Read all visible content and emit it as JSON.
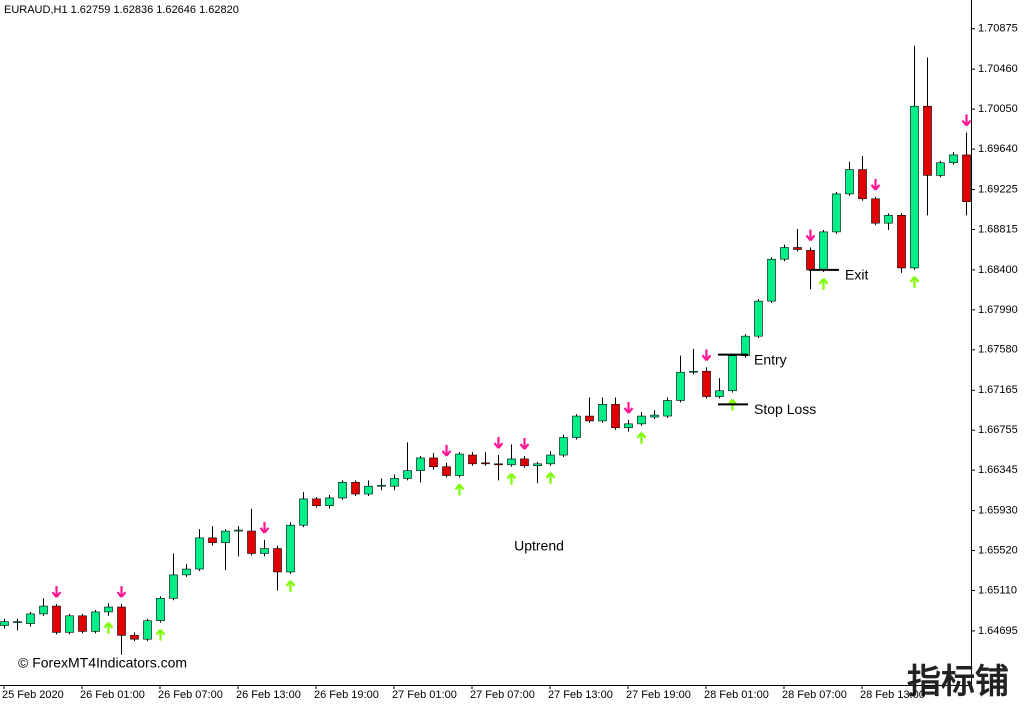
{
  "chart_data": {
    "type": "candlestick",
    "title": "EURAUD,H1  1.62759 1.62836 1.62646 1.62820",
    "categories": [
      "25 Feb 2020",
      null,
      null,
      null,
      null,
      null,
      "26 Feb 01:00",
      null,
      null,
      null,
      null,
      null,
      "26 Feb 07:00",
      null,
      null,
      null,
      null,
      null,
      "26 Feb 13:00",
      null,
      null,
      null,
      null,
      null,
      "26 Feb 19:00",
      null,
      null,
      null,
      null,
      null,
      "27 Feb 01:00",
      null,
      null,
      null,
      null,
      null,
      "27 Feb 07:00",
      null,
      null,
      null,
      null,
      null,
      "27 Feb 13:00",
      null,
      null,
      null,
      null,
      null,
      "27 Feb 19:00",
      null,
      null,
      null,
      null,
      null,
      "28 Feb 01:00",
      null,
      null,
      null,
      null,
      null,
      "28 Feb 07:00",
      null,
      null,
      null,
      null,
      null,
      "28 Feb 13:00",
      null,
      null,
      null,
      null,
      null,
      null,
      null,
      null
    ],
    "open": [
      1.6475,
      1.6478,
      1.6477,
      1.6487,
      1.6495,
      1.6468,
      1.6485,
      1.6469,
      1.6489,
      1.6494,
      1.6465,
      1.6461,
      1.648,
      1.6503,
      1.6527,
      1.6533,
      1.6565,
      1.656,
      1.6572,
      1.6572,
      1.6549,
      1.6554,
      1.653,
      1.6578,
      1.6605,
      1.6598,
      1.6606,
      1.6622,
      1.661,
      1.6618,
      1.6618,
      1.6626,
      1.6634,
      1.6647,
      1.6638,
      1.6629,
      1.665,
      1.6642,
      1.6641,
      1.664,
      1.6646,
      1.6639,
      1.6641,
      1.665,
      1.6668,
      1.669,
      1.6685,
      1.6702,
      1.6678,
      1.6682,
      1.6689,
      1.669,
      1.6706,
      1.6735,
      1.6736,
      1.671,
      1.6716,
      1.6752,
      1.6772,
      1.6808,
      1.6851,
      1.6863,
      1.686,
      1.684,
      1.6879,
      1.6918,
      1.6943,
      1.6913,
      1.6888,
      1.6896,
      1.6842,
      1.7008,
      1.6937,
      1.695,
      1.6958
    ],
    "high": [
      1.6482,
      1.6482,
      1.6489,
      1.6503,
      1.6497,
      1.6487,
      1.6487,
      1.6491,
      1.6498,
      1.6497,
      1.6468,
      1.6482,
      1.6505,
      1.6549,
      1.6538,
      1.6574,
      1.6577,
      1.6574,
      1.6577,
      1.6595,
      1.6563,
      1.6557,
      1.6581,
      1.6612,
      1.6607,
      1.6609,
      1.6624,
      1.6624,
      1.6624,
      1.6626,
      1.663,
      1.6663,
      1.6649,
      1.6652,
      1.6642,
      1.6653,
      1.6653,
      1.6653,
      1.665,
      1.6661,
      1.6649,
      1.6643,
      1.6654,
      1.6671,
      1.6692,
      1.6709,
      1.6709,
      1.6709,
      1.6686,
      1.6694,
      1.6696,
      1.6709,
      1.6752,
      1.6759,
      1.674,
      1.6729,
      1.6754,
      1.6774,
      1.681,
      1.6853,
      1.6866,
      1.6882,
      1.6863,
      1.6881,
      1.692,
      1.6951,
      1.6957,
      1.6915,
      1.6898,
      1.6898,
      1.707,
      1.7058,
      1.6952,
      1.6961,
      1.6981
    ],
    "low": [
      1.6472,
      1.647,
      1.6474,
      1.6485,
      1.6466,
      1.6466,
      1.6467,
      1.6467,
      1.6485,
      1.6445,
      1.6459,
      1.6459,
      1.6478,
      1.6501,
      1.6525,
      1.6531,
      1.6557,
      1.6532,
      1.6546,
      1.6547,
      1.6546,
      1.6511,
      1.6528,
      1.6576,
      1.6596,
      1.6595,
      1.6604,
      1.6608,
      1.6608,
      1.6614,
      1.6614,
      1.6624,
      1.6622,
      1.6635,
      1.6627,
      1.6627,
      1.6639,
      1.6639,
      1.6624,
      1.6638,
      1.6637,
      1.6621,
      1.6639,
      1.6648,
      1.6666,
      1.6683,
      1.6683,
      1.6676,
      1.6674,
      1.668,
      1.6687,
      1.6688,
      1.6704,
      1.6733,
      1.6708,
      1.6708,
      1.6714,
      1.675,
      1.677,
      1.6806,
      1.6849,
      1.6859,
      1.682,
      1.6838,
      1.6877,
      1.6916,
      1.6911,
      1.6886,
      1.6881,
      1.6837,
      1.684,
      1.6896,
      1.6935,
      1.6948,
      1.6896
    ],
    "close": [
      1.6479,
      1.6479,
      1.6487,
      1.6495,
      1.6468,
      1.6485,
      1.6469,
      1.6489,
      1.6494,
      1.6465,
      1.6461,
      1.648,
      1.6503,
      1.6527,
      1.6533,
      1.6565,
      1.656,
      1.6572,
      1.6573,
      1.6549,
      1.6554,
      1.653,
      1.6578,
      1.6605,
      1.6598,
      1.6606,
      1.6622,
      1.661,
      1.6618,
      1.6619,
      1.6626,
      1.6634,
      1.6647,
      1.6638,
      1.6629,
      1.6651,
      1.6641,
      1.6641,
      1.664,
      1.6646,
      1.6639,
      1.6641,
      1.665,
      1.6668,
      1.669,
      1.6685,
      1.6702,
      1.6678,
      1.6682,
      1.669,
      1.6691,
      1.6706,
      1.6735,
      1.6736,
      1.671,
      1.6716,
      1.6752,
      1.6772,
      1.6808,
      1.6851,
      1.6863,
      1.6861,
      1.684,
      1.6879,
      1.6918,
      1.6943,
      1.6913,
      1.6888,
      1.6896,
      1.6842,
      1.7008,
      1.6937,
      1.695,
      1.6958,
      1.691
    ],
    "bull_color": "#00ee88",
    "bear_color": "#e00000",
    "buy_arrows": [
      8,
      12,
      22,
      35,
      39,
      42,
      49,
      56,
      63,
      70
    ],
    "sell_arrows": [
      4,
      9,
      20,
      34,
      38,
      40,
      48,
      54,
      62,
      67,
      74
    ],
    "buy_color": "#7cfc00",
    "sell_color": "#ff1493",
    "levels": [
      {
        "text": "Entry",
        "value": 1.6753,
        "candle": 56
      },
      {
        "text": "Stop Loss",
        "value": 1.6702,
        "candle": 56
      },
      {
        "text": "Exit",
        "value": 1.684,
        "candle": 63
      }
    ],
    "annotation": "Uptrend",
    "credit": "© ForexMT4Indicators.com",
    "watermark": "指标铺",
    "ylim": [
      1.6414,
      1.7117
    ],
    "yticks": [
      1.70875,
      {
        "value": 1.7046,
        "label": "1.70460"
      },
      {
        "value": 1.7005,
        "label": "1.70050"
      },
      {
        "value": 1.6964,
        "label": "1.69640"
      },
      1.69225,
      1.68815,
      {
        "value": 1.684,
        "label": "1.68400"
      },
      {
        "value": 1.6799,
        "label": "1.67990"
      },
      {
        "value": 1.6758,
        "label": "1.67580"
      },
      1.67165,
      1.66755,
      1.66345,
      {
        "value": 1.6593,
        "label": "1.65930"
      },
      {
        "value": 1.6552,
        "label": "1.65520"
      },
      {
        "value": 1.6511,
        "label": "1.65110"
      },
      1.64695
    ]
  }
}
